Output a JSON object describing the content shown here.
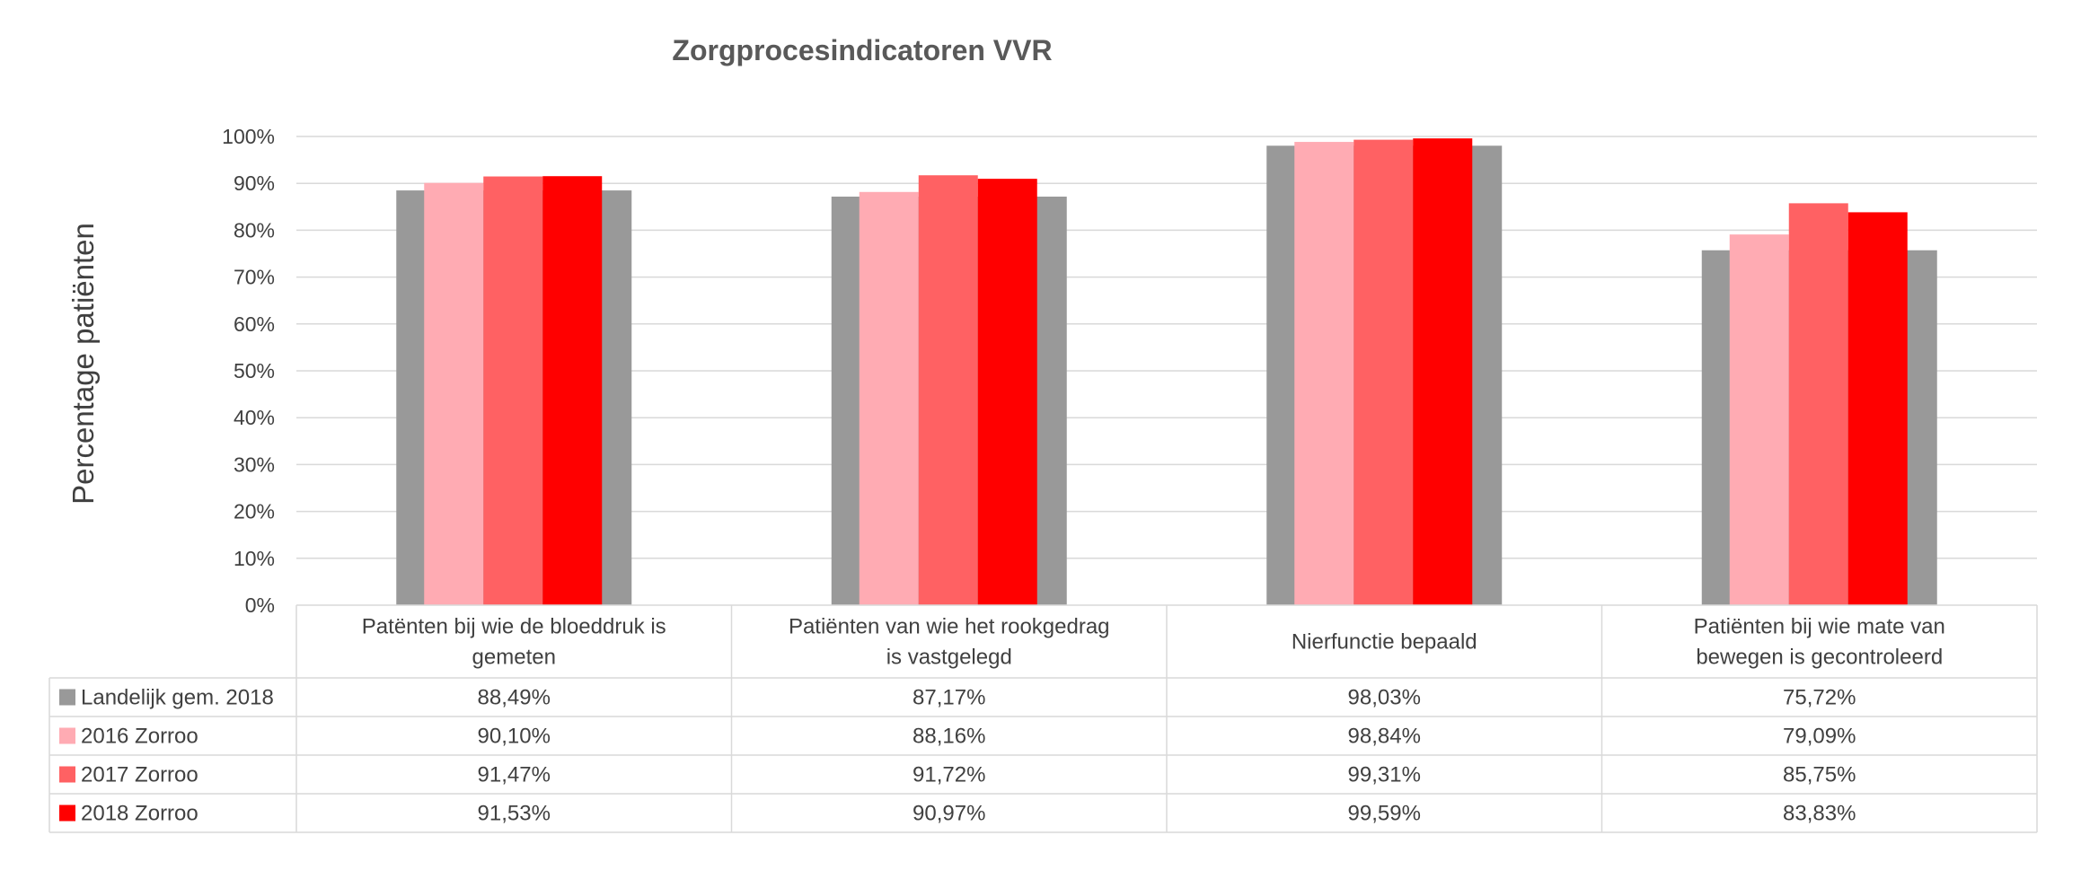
{
  "chart_data": {
    "type": "bar",
    "title": "Zorgprocesindicatoren VVR",
    "ylabel": "Percentage patiënten",
    "ylim": [
      0,
      100
    ],
    "yticks": [
      "0%",
      "10%",
      "20%",
      "30%",
      "40%",
      "50%",
      "60%",
      "70%",
      "80%",
      "90%",
      "100%"
    ],
    "grid": true,
    "legend": "data-table",
    "categories": [
      [
        "Patënten bij wie de bloeddruk is",
        "gemeten"
      ],
      [
        "Patiënten van wie het rookgedrag",
        "is vastgelegd"
      ],
      [
        "Nierfunctie bepaald"
      ],
      [
        "Patiënten bij wie mate van",
        "bewegen is gecontroleerd"
      ]
    ],
    "series": [
      {
        "name": "Landelijk gem. 2018",
        "color": "#999999",
        "values": [
          88.49,
          87.17,
          98.03,
          75.72
        ],
        "labels": [
          "88,49%",
          "87,17%",
          "98,03%",
          "75,72%"
        ]
      },
      {
        "name": "2016 Zorroo",
        "color": "#ffabb3",
        "values": [
          90.1,
          88.16,
          98.84,
          79.09
        ],
        "labels": [
          "90,10%",
          "88,16%",
          "98,84%",
          "79,09%"
        ]
      },
      {
        "name": "2017 Zorroo",
        "color": "#ff6163",
        "values": [
          91.47,
          91.72,
          99.31,
          85.75
        ],
        "labels": [
          "91,47%",
          "91,72%",
          "99,31%",
          "85,75%"
        ]
      },
      {
        "name": "2018 Zorroo",
        "color": "#ff0000",
        "values": [
          91.53,
          90.97,
          99.59,
          83.83
        ],
        "labels": [
          "91,53%",
          "90,97%",
          "99,59%",
          "83,83%"
        ]
      }
    ]
  }
}
